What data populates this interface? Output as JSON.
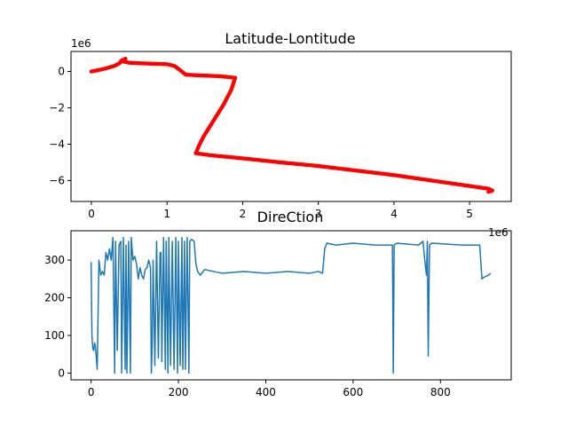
{
  "chart_data": [
    {
      "type": "scatter",
      "title": "Latitude-Lontitude",
      "xlabel": "",
      "ylabel": "",
      "x_offset_label": "1e6",
      "y_offset_label": "1e6",
      "xlim": [
        -0.27,
        5.55
      ],
      "ylim": [
        -7.15,
        1.1
      ],
      "xticks": [
        0,
        1,
        2,
        3,
        4,
        5
      ],
      "yticks": [
        0,
        -2,
        -4,
        -6
      ],
      "xtick_labels": [
        "0",
        "1",
        "2",
        "3",
        "4",
        "5"
      ],
      "ytick_labels": [
        "0",
        "−2",
        "−4",
        "−6"
      ],
      "color": "#ff0000",
      "grid": false,
      "path": [
        [
          0.0,
          0.0
        ],
        [
          0.1,
          0.08
        ],
        [
          0.2,
          0.18
        ],
        [
          0.3,
          0.3
        ],
        [
          0.37,
          0.45
        ],
        [
          0.4,
          0.6
        ],
        [
          0.45,
          0.7
        ],
        [
          0.42,
          0.55
        ],
        [
          0.5,
          0.48
        ],
        [
          0.65,
          0.45
        ],
        [
          0.85,
          0.42
        ],
        [
          1.0,
          0.4
        ],
        [
          1.1,
          0.3
        ],
        [
          1.25,
          -0.18
        ],
        [
          1.45,
          -0.22
        ],
        [
          1.7,
          -0.26
        ],
        [
          1.9,
          -0.35
        ],
        [
          1.85,
          -1.0
        ],
        [
          1.75,
          -1.8
        ],
        [
          1.6,
          -2.8
        ],
        [
          1.48,
          -3.6
        ],
        [
          1.42,
          -4.1
        ],
        [
          1.38,
          -4.5
        ],
        [
          1.6,
          -4.62
        ],
        [
          2.0,
          -4.78
        ],
        [
          2.5,
          -5.0
        ],
        [
          3.0,
          -5.2
        ],
        [
          3.5,
          -5.45
        ],
        [
          4.0,
          -5.7
        ],
        [
          4.5,
          -6.0
        ],
        [
          5.0,
          -6.3
        ],
        [
          5.25,
          -6.45
        ],
        [
          5.3,
          -6.55
        ],
        [
          5.25,
          -6.62
        ]
      ]
    },
    {
      "type": "line",
      "title": "DireCtion",
      "xlabel": "",
      "ylabel": "",
      "xlim": [
        -46,
        962
      ],
      "ylim": [
        -18,
        378
      ],
      "xticks": [
        0,
        200,
        400,
        600,
        800
      ],
      "yticks": [
        0,
        100,
        200,
        300
      ],
      "xtick_labels": [
        "0",
        "200",
        "400",
        "600",
        "800"
      ],
      "ytick_labels": [
        "0",
        "100",
        "200",
        "300"
      ],
      "color": "#1f77b4",
      "grid": false,
      "x": [
        0,
        2,
        4,
        6,
        8,
        10,
        14,
        18,
        22,
        26,
        30,
        34,
        38,
        42,
        46,
        50,
        54,
        56,
        60,
        64,
        68,
        70,
        74,
        78,
        80,
        82,
        86,
        90,
        92,
        96,
        100,
        104,
        108,
        112,
        116,
        120,
        124,
        128,
        132,
        136,
        138,
        140,
        142,
        146,
        150,
        154,
        158,
        160,
        162,
        166,
        170,
        172,
        176,
        178,
        182,
        186,
        190,
        194,
        198,
        200,
        204,
        208,
        210,
        214,
        216,
        220,
        224,
        226,
        230,
        236,
        240,
        244,
        250,
        260,
        300,
        350,
        400,
        450,
        500,
        520,
        530,
        535,
        540,
        560,
        600,
        650,
        690,
        692,
        694,
        700,
        750,
        760,
        765,
        768,
        770,
        772,
        775,
        780,
        850,
        890,
        895,
        900,
        910,
        915
      ],
      "y": [
        295,
        100,
        65,
        60,
        80,
        70,
        10,
        300,
        260,
        270,
        260,
        320,
        300,
        330,
        300,
        360,
        0,
        350,
        60,
        340,
        350,
        0,
        360,
        10,
        340,
        0,
        350,
        0,
        360,
        300,
        310,
        290,
        250,
        280,
        260,
        250,
        275,
        280,
        300,
        280,
        0,
        80,
        300,
        20,
        350,
        40,
        320,
        320,
        30,
        360,
        10,
        350,
        0,
        360,
        20,
        350,
        10,
        360,
        0,
        350,
        20,
        360,
        10,
        350,
        10,
        360,
        0,
        350,
        355,
        350,
        290,
        270,
        260,
        275,
        265,
        270,
        265,
        270,
        265,
        270,
        265,
        330,
        345,
        340,
        345,
        340,
        340,
        0,
        340,
        345,
        340,
        350,
        290,
        260,
        350,
        45,
        340,
        345,
        340,
        340,
        250,
        255,
        260,
        265
      ]
    }
  ]
}
